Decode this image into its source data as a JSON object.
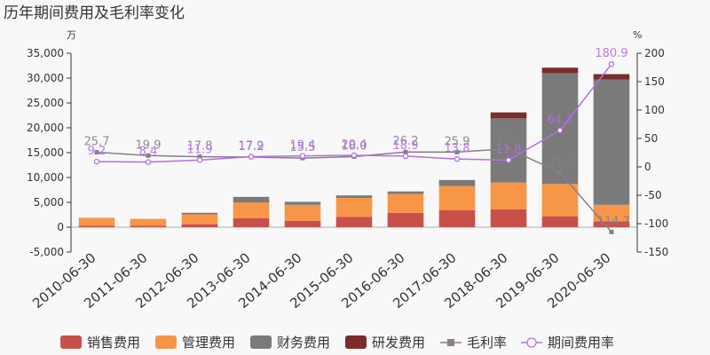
{
  "chart_data": {
    "type": "bar",
    "title": "历年期间费用及毛利率变化",
    "y_left_unit": "万",
    "y_right_unit": "%",
    "categories": [
      "2010-06-30",
      "2011-06-30",
      "2012-06-30",
      "2013-06-30",
      "2014-06-30",
      "2015-06-30",
      "2016-06-30",
      "2017-06-30",
      "2018-06-30",
      "2019-06-30",
      "2020-06-30"
    ],
    "y_left_ticks": [
      "-5,000",
      "0",
      "5,000",
      "10,000",
      "15,000",
      "20,000",
      "25,000",
      "30,000",
      "35,000"
    ],
    "y_left_range": [
      -5000,
      35000
    ],
    "y_right_ticks": [
      "-150",
      "-100",
      "-50",
      "0",
      "50",
      "100",
      "150",
      "200"
    ],
    "y_right_range": [
      -150,
      200
    ],
    "stacked_series": [
      {
        "name": "销售费用",
        "color": "#c9504a",
        "values": [
          300,
          280,
          600,
          1800,
          1300,
          2100,
          2900,
          3400,
          3600,
          2200,
          1200
        ]
      },
      {
        "name": "管理费用",
        "color": "#f79646",
        "values": [
          1600,
          1400,
          2000,
          3200,
          3200,
          3800,
          3800,
          4900,
          5400,
          6500,
          3300
        ]
      },
      {
        "name": "财务费用",
        "color": "#7a7a7a",
        "values": [
          0,
          0,
          300,
          1100,
          600,
          500,
          500,
          1200,
          12900,
          22300,
          25200
        ]
      },
      {
        "name": "研发费用",
        "color": "#7b2c2c",
        "values": [
          0,
          0,
          0,
          0,
          0,
          0,
          0,
          0,
          1200,
          1100,
          1100
        ]
      }
    ],
    "line_series": [
      {
        "name": "毛利率",
        "color": "#8a7d8a",
        "marker": "square",
        "values": [
          25.7,
          19.9,
          17.8,
          17.2,
          15.5,
          18.0,
          26.2,
          25.9,
          32.1,
          -10.2,
          -114.7
        ],
        "labels": [
          "25.7",
          "19.9",
          "17.8",
          "17.2",
          "15.5",
          "18.0",
          "26.2",
          "25.9",
          "32.1",
          "-10.2",
          "-114.7"
        ]
      },
      {
        "name": "期间费用率",
        "color": "#b46ee6",
        "marker": "circle",
        "values": [
          9.2,
          8.4,
          11.9,
          17.9,
          19.4,
          20.4,
          18.9,
          13.8,
          11.8,
          64.3,
          180.9
        ],
        "labels": [
          "9.2",
          "8.4",
          "11.9",
          "17.9",
          "19.4",
          "20.4",
          "18.9",
          "13.8",
          "11.8",
          "64.3",
          "180.9"
        ]
      }
    ],
    "legend_position": "bottom",
    "grid": false
  }
}
